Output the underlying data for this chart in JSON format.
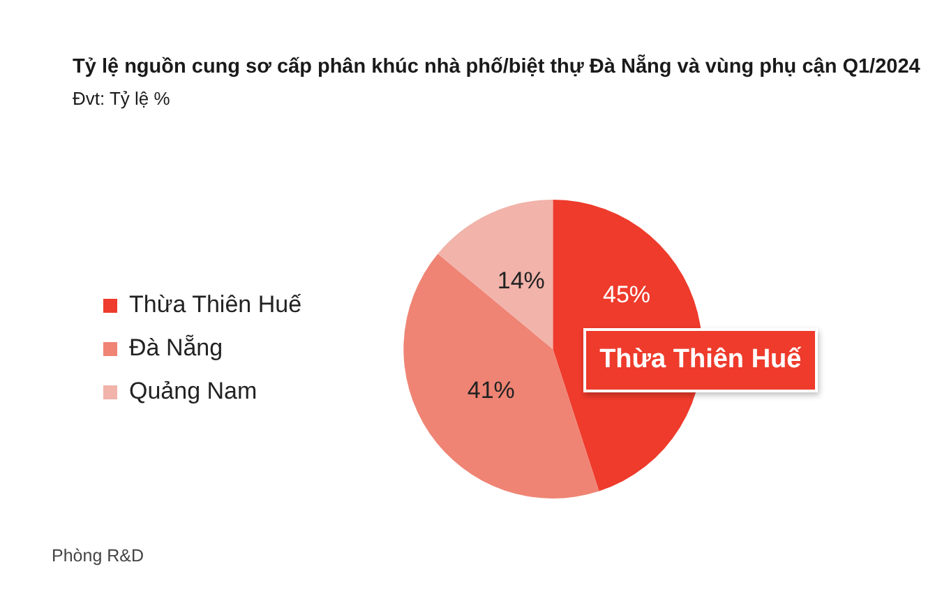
{
  "chart_data": {
    "type": "pie",
    "title": "Tỷ lệ nguồn cung sơ cấp phân khúc nhà phố/biệt thự Đà Nẵng và vùng phụ cận Q1/2024",
    "subtitle": "Đvt: Tỷ lệ %",
    "categories": [
      "Thừa Thiên Huế",
      "Đà Nẵng",
      "Quảng Nam"
    ],
    "values": [
      45,
      41,
      14
    ],
    "colors": [
      "#ee3b2c",
      "#ef8474",
      "#f1b3aa"
    ],
    "value_labels": [
      "45%",
      "41%",
      "14%"
    ],
    "legend": "left",
    "annotations": [
      {
        "text": "Thừa Thiên Huế",
        "x": "Thừa Thiên Huế"
      },
      "Phòng R&D"
    ]
  }
}
